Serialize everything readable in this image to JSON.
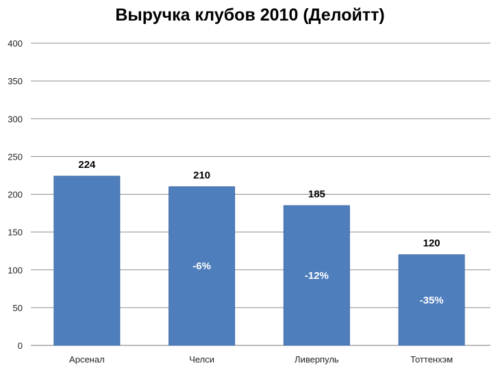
{
  "chart_data": {
    "type": "bar",
    "title": "Выручка клубов 2010 (Делойтт)",
    "categories": [
      "Арсенал",
      "Челси",
      "Ливерпуль",
      "Тоттенхэм"
    ],
    "values": [
      224,
      210,
      185,
      120
    ],
    "value_labels": [
      "224",
      "210",
      "185",
      "120"
    ],
    "change_labels": [
      "",
      "-6%",
      "-12%",
      "-35%"
    ],
    "ylim": [
      0,
      400
    ],
    "yticks": [
      0,
      50,
      100,
      150,
      200,
      250,
      300,
      350,
      400
    ],
    "grid": true,
    "bar_color": "#4F7EBD"
  }
}
